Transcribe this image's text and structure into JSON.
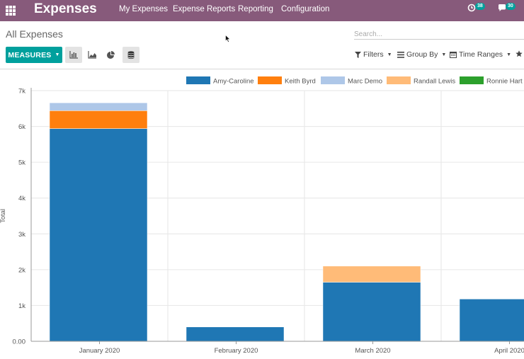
{
  "navbar": {
    "app_name": "Expenses",
    "menu": [
      "My Expenses",
      "Expense Reports",
      "Reporting",
      "Configuration"
    ],
    "activity_count": "38",
    "messages_count": "30"
  },
  "control_panel": {
    "breadcrumb": "All Expenses",
    "search_placeholder": "Search...",
    "measures_label": "MEASURES",
    "filters_label": "Filters",
    "groupby_label": "Group By",
    "timeranges_label": "Time Ranges"
  },
  "colors": {
    "navbar": "#875a7b",
    "primary": "#00a09d"
  },
  "chart_data": {
    "type": "bar",
    "stacked": true,
    "ylabel": "Total",
    "xlabel": "",
    "ylim": [
      0,
      7000
    ],
    "yticks": [
      0,
      1000,
      2000,
      3000,
      4000,
      5000,
      6000,
      7000
    ],
    "ytick_labels": [
      "0.00",
      "1k",
      "2k",
      "3k",
      "4k",
      "5k",
      "6k",
      "7k"
    ],
    "categories": [
      "January 2020",
      "February 2020",
      "March 2020",
      "April 2020"
    ],
    "legend_position": "top-right",
    "series": [
      {
        "name": "Amy-Caroline",
        "color": "#1f77b4",
        "values": [
          5940,
          400,
          1650,
          1180
        ]
      },
      {
        "name": "Keith Byrd",
        "color": "#ff7f0e",
        "values": [
          500,
          0,
          0,
          0
        ]
      },
      {
        "name": "Marc Demo",
        "color": "#aec7e8",
        "values": [
          220,
          0,
          0,
          0
        ]
      },
      {
        "name": "Randall Lewis",
        "color": "#ffbb78",
        "values": [
          0,
          0,
          450,
          0
        ]
      },
      {
        "name": "Ronnie Hart",
        "color": "#2ca02c",
        "values": [
          0,
          0,
          0,
          0
        ]
      }
    ]
  }
}
